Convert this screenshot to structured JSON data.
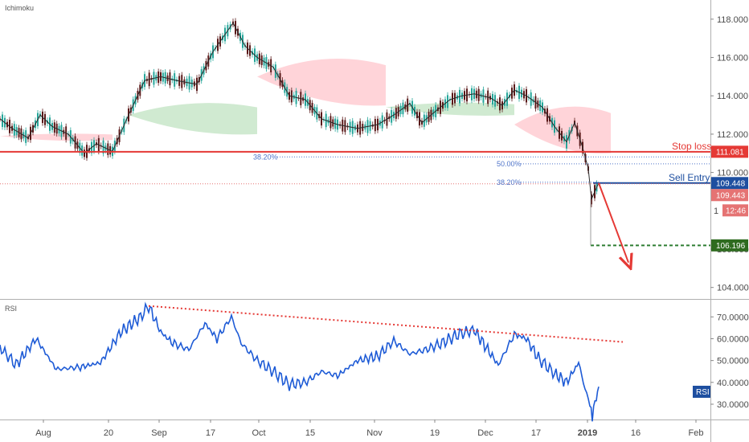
{
  "main_pane": {
    "indicator_label": "Ichimoku",
    "y_ticks": [
      "118.000",
      "116.000",
      "114.000",
      "112.000",
      "110.000",
      "106.000",
      "104.000"
    ],
    "annotations": {
      "stop_loss": "Stop loss",
      "sell_entry": "Sell Entry"
    },
    "fib_labels": {
      "left_382": "38.20%",
      "right_500": "50.00%",
      "right_382": "38.20%"
    },
    "price_tags": {
      "stop_loss": "111.081",
      "sell_entry": "109.448",
      "last_price": "109.443",
      "countdown": "12:46",
      "partial": "1",
      "target": "106.196"
    },
    "colors": {
      "stop_loss": "#e53935",
      "sell_entry": "#1e4fa0",
      "target": "#2e7d32",
      "last_price": "#e57373",
      "candle_up": "#26a69a",
      "candle_down": "#5a1a1a",
      "cloud_bull": "#c8e6c9",
      "cloud_bear": "#ffcdd2"
    }
  },
  "rsi_pane": {
    "label": "RSI",
    "badge": "RSI",
    "y_ticks": [
      "70.0000",
      "60.0000",
      "50.0000",
      "40.0000",
      "30.0000"
    ],
    "line_color": "#1e5bd6"
  },
  "x_axis": {
    "labels": [
      "Aug",
      "20",
      "Sep",
      "17",
      "Oct",
      "15",
      "Nov",
      "19",
      "Dec",
      "17",
      "2019",
      "16",
      "Feb"
    ]
  },
  "chart_data": {
    "type": "line",
    "x": [
      "Aug",
      "20",
      "Sep",
      "17",
      "Oct",
      "15",
      "Nov",
      "19",
      "Dec",
      "17",
      "2019",
      "16",
      "Feb"
    ],
    "ylim": [
      103.4,
      119.0
    ],
    "price_path": [
      [
        0,
        112.8
      ],
      [
        15,
        112.3
      ],
      [
        35,
        111.8
      ],
      [
        50,
        113.0
      ],
      [
        65,
        112.4
      ],
      [
        85,
        112.0
      ],
      [
        105,
        111.0
      ],
      [
        120,
        111.5
      ],
      [
        140,
        111.1
      ],
      [
        160,
        113.0
      ],
      [
        180,
        114.8
      ],
      [
        200,
        115.0
      ],
      [
        220,
        114.8
      ],
      [
        245,
        114.6
      ],
      [
        265,
        116.3
      ],
      [
        280,
        117.2
      ],
      [
        290,
        117.8
      ],
      [
        305,
        116.6
      ],
      [
        320,
        116.0
      ],
      [
        340,
        115.5
      ],
      [
        360,
        114.0
      ],
      [
        380,
        113.8
      ],
      [
        400,
        112.8
      ],
      [
        420,
        112.5
      ],
      [
        445,
        112.3
      ],
      [
        470,
        112.5
      ],
      [
        490,
        113.0
      ],
      [
        510,
        113.6
      ],
      [
        525,
        112.6
      ],
      [
        545,
        113.3
      ],
      [
        560,
        113.8
      ],
      [
        575,
        114.0
      ],
      [
        590,
        114.1
      ],
      [
        610,
        113.9
      ],
      [
        625,
        113.5
      ],
      [
        640,
        114.3
      ],
      [
        655,
        114.0
      ],
      [
        675,
        113.4
      ],
      [
        690,
        112.4
      ],
      [
        705,
        111.6
      ],
      [
        715,
        112.6
      ],
      [
        725,
        111.3
      ],
      [
        732,
        110.2
      ],
      [
        736,
        108.6
      ],
      [
        740,
        109.0
      ],
      [
        745,
        109.45
      ]
    ],
    "levels": [
      {
        "name": "Stop loss",
        "value": 111.081
      },
      {
        "name": "Sell Entry",
        "value": 109.448
      },
      {
        "value": 106.196
      }
    ],
    "fibonacci": [
      {
        "label": "38.20%",
        "value": 110.81
      },
      {
        "label": "50.00%",
        "value": 110.45
      },
      {
        "label": "38.20%",
        "value": 109.49
      }
    ],
    "projection": {
      "from": [
        745,
        109.45
      ],
      "to": [
        782,
        105.3
      ]
    },
    "cloud_segments": [
      {
        "bias": "bear",
        "x0": 0,
        "x1": 140,
        "top": 112.1,
        "bottom": 111.7
      },
      {
        "bias": "bull",
        "x0": 160,
        "x1": 320,
        "top": 114.0,
        "bottom": 112.0
      },
      {
        "bias": "bear",
        "x0": 320,
        "x1": 480,
        "top": 116.5,
        "bottom": 113.5
      },
      {
        "bias": "bull",
        "x0": 480,
        "x1": 640,
        "top": 113.8,
        "bottom": 113.0
      },
      {
        "bias": "bear",
        "x0": 640,
        "x1": 760,
        "top": 114.0,
        "bottom": 111.0
      }
    ],
    "rsi": {
      "ylim": [
        23,
        76
      ],
      "values": [
        [
          0,
          56
        ],
        [
          20,
          48
        ],
        [
          45,
          60
        ],
        [
          70,
          46
        ],
        [
          100,
          47
        ],
        [
          125,
          49
        ],
        [
          150,
          63
        ],
        [
          175,
          70
        ],
        [
          185,
          75
        ],
        [
          200,
          63
        ],
        [
          215,
          58
        ],
        [
          235,
          55
        ],
        [
          255,
          67
        ],
        [
          270,
          60
        ],
        [
          288,
          70
        ],
        [
          300,
          58
        ],
        [
          320,
          50
        ],
        [
          340,
          45
        ],
        [
          360,
          39
        ],
        [
          380,
          40
        ],
        [
          400,
          45
        ],
        [
          420,
          43
        ],
        [
          445,
          50
        ],
        [
          470,
          52
        ],
        [
          490,
          59
        ],
        [
          510,
          53
        ],
        [
          530,
          55
        ],
        [
          550,
          58
        ],
        [
          570,
          62
        ],
        [
          590,
          64
        ],
        [
          605,
          56
        ],
        [
          620,
          48
        ],
        [
          640,
          62
        ],
        [
          655,
          60
        ],
        [
          670,
          51
        ],
        [
          690,
          44
        ],
        [
          705,
          40
        ],
        [
          720,
          49
        ],
        [
          728,
          37
        ],
        [
          734,
          30
        ],
        [
          737,
          25
        ],
        [
          742,
          33
        ],
        [
          745,
          38
        ]
      ],
      "trendline": [
        [
          185,
          75
        ],
        [
          775,
          58.5
        ]
      ]
    }
  }
}
